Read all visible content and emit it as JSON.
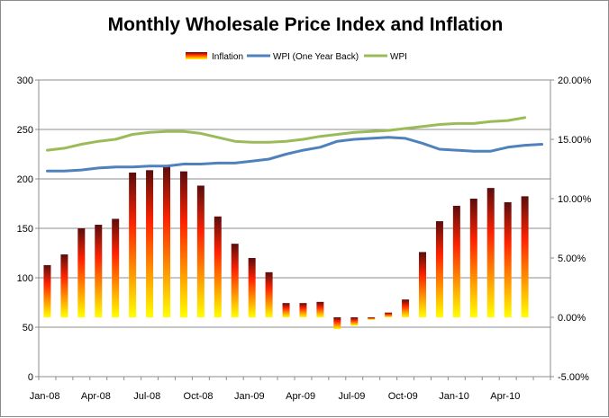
{
  "chart_data": {
    "type": "bar",
    "title": "Monthly Wholesale Price Index and Inflation",
    "xlabel": "",
    "ylabel": "",
    "x_tick_labels": [
      "Jan-08",
      "Apr-08",
      "Jul-08",
      "Oct-08",
      "Jan-09",
      "Apr-09",
      "Jul-09",
      "Oct-09",
      "Jan-10",
      "Apr-10"
    ],
    "left_axis": {
      "ylim": [
        0,
        300
      ],
      "ticks": [
        "0",
        "50",
        "100",
        "150",
        "200",
        "250",
        "300"
      ]
    },
    "right_axis": {
      "ylim": [
        -5,
        20
      ],
      "ticks": [
        "-5.00%",
        "0.00%",
        "5.00%",
        "10.00%",
        "15.00%",
        "20.00%"
      ]
    },
    "grid": "horizontal",
    "legend_placement": "top-center",
    "months": [
      "Jan-08",
      "Feb-08",
      "Mar-08",
      "Apr-08",
      "May-08",
      "Jun-08",
      "Jul-08",
      "Aug-08",
      "Sep-08",
      "Oct-08",
      "Nov-08",
      "Dec-08",
      "Jan-09",
      "Feb-09",
      "Mar-09",
      "Apr-09",
      "May-09",
      "Jun-09",
      "Jul-09",
      "Aug-09",
      "Sep-09",
      "Oct-09",
      "Nov-09",
      "Dec-09",
      "Jan-10",
      "Feb-10",
      "Mar-10",
      "Apr-10",
      "May-10",
      "Jun-10"
    ],
    "series": [
      {
        "name": "Inflation",
        "kind": "bar",
        "axis": "right",
        "values": [
          4.4,
          5.3,
          7.5,
          7.8,
          8.3,
          12.2,
          12.4,
          12.8,
          12.3,
          11.1,
          8.5,
          6.2,
          5.0,
          3.8,
          1.2,
          1.2,
          1.3,
          -1.0,
          -0.7,
          -0.2,
          0.4,
          1.5,
          5.5,
          8.1,
          9.4,
          10.0,
          10.9,
          9.7,
          10.2,
          null
        ]
      },
      {
        "name": "WPI (One Year Back)",
        "kind": "line",
        "axis": "left",
        "color": "#4f81bd",
        "values": [
          208,
          208,
          209,
          211,
          212,
          212,
          213,
          213,
          215,
          215,
          216,
          216,
          218,
          220,
          225,
          229,
          232,
          238,
          240,
          241,
          242,
          241,
          236,
          230,
          229,
          228,
          228,
          232,
          234,
          235
        ]
      },
      {
        "name": "WPI",
        "kind": "line",
        "axis": "left",
        "color": "#9bbb59",
        "values": [
          229,
          231,
          235,
          238,
          240,
          245,
          247,
          248,
          248,
          246,
          242,
          238,
          237,
          237,
          238,
          240,
          243,
          245,
          247,
          248,
          249,
          251,
          253,
          255,
          256,
          256,
          258,
          259,
          262,
          null
        ]
      }
    ],
    "colors": {
      "bar_top": "#5a0d0d",
      "bar_mid": "#ff2200",
      "bar_bottom": "#ffff00",
      "grid": "#8c8c8c"
    }
  }
}
